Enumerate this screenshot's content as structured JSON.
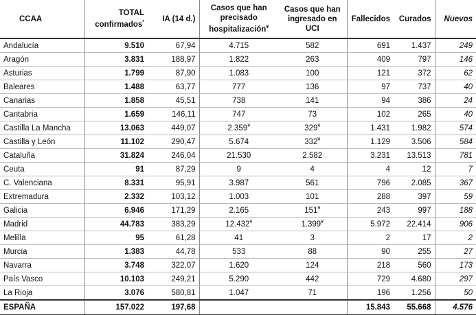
{
  "table": {
    "header": [
      "CCAA",
      [
        "TOTAL confirmados",
        "*"
      ],
      "IA (14 d.)",
      [
        "Casos que han precisado hospitalización",
        "¥"
      ],
      "Casos que han ingresado en UCI",
      "Fallecidos",
      "Curados",
      "Nuevos"
    ],
    "rows": [
      [
        "Andalucía",
        "9.510",
        "67,94",
        "4.715",
        "582",
        "691",
        "1.437",
        "249"
      ],
      [
        "Aragón",
        "3.831",
        "188,97",
        "1.822",
        "263",
        "409",
        "797",
        "146"
      ],
      [
        "Asturias",
        "1.799",
        "87,90",
        "1.083",
        "100",
        "121",
        "372",
        "62"
      ],
      [
        "Baleares",
        "1.488",
        "63,77",
        "777",
        "136",
        "97",
        "737",
        "40"
      ],
      [
        "Canarias",
        "1.858",
        "45,51",
        "738",
        "141",
        "94",
        "386",
        "24"
      ],
      [
        "Cantabria",
        "1.659",
        "146,11",
        "747",
        "73",
        "102",
        "265",
        "40"
      ],
      [
        "Castilla La Mancha",
        "13.063",
        "449,07",
        [
          "2.359",
          "¥"
        ],
        [
          "329",
          "¥"
        ],
        "1.431",
        "1.982",
        "574"
      ],
      [
        "Castilla y León",
        "11.102",
        "290,47",
        "5.674",
        [
          "332",
          "¥"
        ],
        "1.129",
        "3.506",
        "584"
      ],
      [
        "Cataluña",
        "31.824",
        "246,04",
        "21.530",
        "2.582",
        "3.231",
        "13.513",
        "781"
      ],
      [
        "Ceuta",
        "91",
        "87,29",
        "9",
        "4",
        "4",
        "12",
        "7"
      ],
      [
        "C. Valenciana",
        "8.331",
        "95,91",
        "3.987",
        "561",
        "796",
        "2.085",
        "367"
      ],
      [
        "Extremadura",
        "2.332",
        "103,12",
        "1.003",
        "101",
        "288",
        "397",
        "59"
      ],
      [
        "Galicia",
        "6.946",
        "171,29",
        "2.165",
        [
          "151",
          "¥"
        ],
        "243",
        "997",
        "188"
      ],
      [
        "Madrid",
        "44.783",
        "383,29",
        [
          "12.432",
          "¥"
        ],
        [
          "1.399",
          "¥"
        ],
        "5.972",
        "22.414",
        "906"
      ],
      [
        "Melilla",
        "95",
        "61,28",
        "41",
        "3",
        "2",
        "17",
        "2"
      ],
      [
        "Murcia",
        "1.383",
        "44,78",
        "533",
        "88",
        "90",
        "255",
        "27"
      ],
      [
        "Navarra",
        "3.748",
        "322,07",
        "1.620",
        "124",
        "218",
        "560",
        "173"
      ],
      [
        "País Vasco",
        "10.103",
        "249,21",
        "5.290",
        "442",
        "729",
        "4.680",
        "297"
      ],
      [
        "La Rioja",
        "3.076",
        "580,81",
        "1.047",
        "71",
        "196",
        "1.256",
        "50"
      ]
    ],
    "total": [
      "ESPAÑA",
      "157.022",
      "197,68",
      null,
      null,
      "15.843",
      "55.668",
      "4.576"
    ]
  }
}
